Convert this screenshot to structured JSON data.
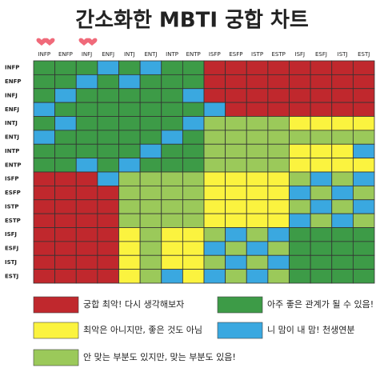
{
  "title": "간소화한 MBTI 궁합 차트",
  "columns": [
    "INFP",
    "ENFP",
    "INFJ",
    "ENFJ",
    "INTJ",
    "ENTJ",
    "INTP",
    "ENTP",
    "ISFP",
    "ESFP",
    "ISTP",
    "ESTP",
    "ISFJ",
    "ESFJ",
    "ISTJ",
    "ESTJ"
  ],
  "rows": [
    {
      "label": "INFP",
      "cells": [
        "#3d9b47",
        "#3d9b47",
        "#3d9b47",
        "#3aa8e0",
        "#3d9b47",
        "#3aa8e0",
        "#3d9b47",
        "#3d9b47",
        "#c0282d",
        "#c0282d",
        "#c0282d",
        "#c0282d",
        "#c0282d",
        "#c0282d",
        "#c0282d",
        "#c0282d"
      ]
    },
    {
      "label": "ENFP",
      "cells": [
        "#3d9b47",
        "#3d9b47",
        "#3aa8e0",
        "#3d9b47",
        "#3aa8e0",
        "#3d9b47",
        "#3d9b47",
        "#3d9b47",
        "#c0282d",
        "#c0282d",
        "#c0282d",
        "#c0282d",
        "#c0282d",
        "#c0282d",
        "#c0282d",
        "#c0282d"
      ]
    },
    {
      "label": "INFJ",
      "cells": [
        "#3d9b47",
        "#3aa8e0",
        "#3d9b47",
        "#3d9b47",
        "#3d9b47",
        "#3d9b47",
        "#3d9b47",
        "#3aa8e0",
        "#c0282d",
        "#c0282d",
        "#c0282d",
        "#c0282d",
        "#c0282d",
        "#c0282d",
        "#c0282d",
        "#c0282d"
      ]
    },
    {
      "label": "ENFJ",
      "cells": [
        "#3aa8e0",
        "#3d9b47",
        "#3d9b47",
        "#3d9b47",
        "#3d9b47",
        "#3d9b47",
        "#3d9b47",
        "#3d9b47",
        "#3aa8e0",
        "#c0282d",
        "#c0282d",
        "#c0282d",
        "#c0282d",
        "#c0282d",
        "#c0282d",
        "#c0282d"
      ]
    },
    {
      "label": "INTJ",
      "cells": [
        "#3d9b47",
        "#3aa8e0",
        "#3d9b47",
        "#3d9b47",
        "#3d9b47",
        "#3d9b47",
        "#3d9b47",
        "#3aa8e0",
        "#9bc95a",
        "#9bc95a",
        "#9bc95a",
        "#9bc95a",
        "#fbf33f",
        "#fbf33f",
        "#fbf33f",
        "#fbf33f"
      ]
    },
    {
      "label": "ENTJ",
      "cells": [
        "#3aa8e0",
        "#3d9b47",
        "#3d9b47",
        "#3d9b47",
        "#3d9b47",
        "#3d9b47",
        "#3aa8e0",
        "#3d9b47",
        "#9bc95a",
        "#9bc95a",
        "#9bc95a",
        "#9bc95a",
        "#9bc95a",
        "#9bc95a",
        "#9bc95a",
        "#9bc95a"
      ]
    },
    {
      "label": "INTP",
      "cells": [
        "#3d9b47",
        "#3d9b47",
        "#3d9b47",
        "#3d9b47",
        "#3d9b47",
        "#3aa8e0",
        "#3d9b47",
        "#3d9b47",
        "#9bc95a",
        "#9bc95a",
        "#9bc95a",
        "#9bc95a",
        "#fbf33f",
        "#fbf33f",
        "#fbf33f",
        "#3aa8e0"
      ]
    },
    {
      "label": "ENTP",
      "cells": [
        "#3d9b47",
        "#3d9b47",
        "#3aa8e0",
        "#3d9b47",
        "#3aa8e0",
        "#3d9b47",
        "#3d9b47",
        "#3d9b47",
        "#9bc95a",
        "#9bc95a",
        "#9bc95a",
        "#9bc95a",
        "#fbf33f",
        "#fbf33f",
        "#fbf33f",
        "#fbf33f"
      ]
    },
    {
      "label": "ISFP",
      "cells": [
        "#c0282d",
        "#c0282d",
        "#c0282d",
        "#3aa8e0",
        "#9bc95a",
        "#9bc95a",
        "#9bc95a",
        "#9bc95a",
        "#fbf33f",
        "#fbf33f",
        "#fbf33f",
        "#fbf33f",
        "#9bc95a",
        "#3aa8e0",
        "#9bc95a",
        "#3aa8e0"
      ]
    },
    {
      "label": "ESFP",
      "cells": [
        "#c0282d",
        "#c0282d",
        "#c0282d",
        "#c0282d",
        "#9bc95a",
        "#9bc95a",
        "#9bc95a",
        "#9bc95a",
        "#fbf33f",
        "#fbf33f",
        "#fbf33f",
        "#fbf33f",
        "#3aa8e0",
        "#9bc95a",
        "#3aa8e0",
        "#9bc95a"
      ]
    },
    {
      "label": "ISTP",
      "cells": [
        "#c0282d",
        "#c0282d",
        "#c0282d",
        "#c0282d",
        "#9bc95a",
        "#9bc95a",
        "#9bc95a",
        "#9bc95a",
        "#fbf33f",
        "#fbf33f",
        "#fbf33f",
        "#fbf33f",
        "#9bc95a",
        "#3aa8e0",
        "#9bc95a",
        "#3aa8e0"
      ]
    },
    {
      "label": "ESTP",
      "cells": [
        "#c0282d",
        "#c0282d",
        "#c0282d",
        "#c0282d",
        "#9bc95a",
        "#9bc95a",
        "#9bc95a",
        "#9bc95a",
        "#fbf33f",
        "#fbf33f",
        "#fbf33f",
        "#fbf33f",
        "#3aa8e0",
        "#9bc95a",
        "#3aa8e0",
        "#9bc95a"
      ]
    },
    {
      "label": "ISFJ",
      "cells": [
        "#c0282d",
        "#c0282d",
        "#c0282d",
        "#c0282d",
        "#fbf33f",
        "#9bc95a",
        "#fbf33f",
        "#fbf33f",
        "#9bc95a",
        "#3aa8e0",
        "#9bc95a",
        "#3aa8e0",
        "#3d9b47",
        "#3d9b47",
        "#3d9b47",
        "#3d9b47"
      ]
    },
    {
      "label": "ESFJ",
      "cells": [
        "#c0282d",
        "#c0282d",
        "#c0282d",
        "#c0282d",
        "#fbf33f",
        "#9bc95a",
        "#fbf33f",
        "#fbf33f",
        "#3aa8e0",
        "#9bc95a",
        "#3aa8e0",
        "#9bc95a",
        "#3d9b47",
        "#3d9b47",
        "#3d9b47",
        "#3d9b47"
      ]
    },
    {
      "label": "ISTJ",
      "cells": [
        "#c0282d",
        "#c0282d",
        "#c0282d",
        "#c0282d",
        "#fbf33f",
        "#9bc95a",
        "#fbf33f",
        "#fbf33f",
        "#9bc95a",
        "#3aa8e0",
        "#9bc95a",
        "#3aa8e0",
        "#3d9b47",
        "#3d9b47",
        "#3d9b47",
        "#3d9b47"
      ]
    },
    {
      "label": "ESTJ",
      "cells": [
        "#c0282d",
        "#c0282d",
        "#c0282d",
        "#c0282d",
        "#fbf33f",
        "#9bc95a",
        "#3aa8e0",
        "#fbf33f",
        "#3aa8e0",
        "#9bc95a",
        "#3aa8e0",
        "#9bc95a",
        "#3d9b47",
        "#3d9b47",
        "#3d9b47",
        "#3d9b47"
      ]
    }
  ],
  "legend": [
    {
      "color": "#c0282d",
      "text": "궁합 최악! 다시 생각해보자"
    },
    {
      "color": "#3d9b47",
      "text": "아주 좋은 관계가 될 수 있음!"
    },
    {
      "color": "#fbf33f",
      "text": "최악은 아니지만, 좋은 것도 아님"
    },
    {
      "color": "#3aa8e0",
      "text": "니 맘이 내 맘! 천생연분"
    },
    {
      "color": "#9bc95a",
      "text": "안 맞는 부분도 있지만, 맞는 부분도 있음!"
    }
  ]
}
